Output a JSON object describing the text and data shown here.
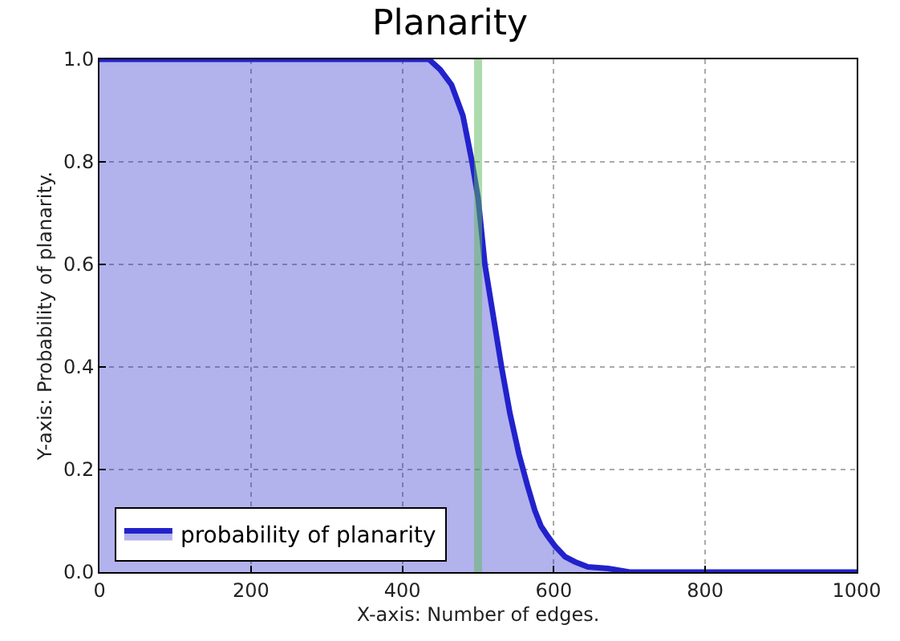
{
  "chart_data": {
    "type": "area",
    "title": "Planarity",
    "xlabel": "X-axis: Number of edges.",
    "ylabel": "Y-axis: Probability of planarity.",
    "xlim": [
      0,
      1000
    ],
    "xticks": [
      0,
      200,
      400,
      600,
      800,
      1000
    ],
    "ylim": [
      0.0,
      1.0
    ],
    "yticks": [
      {
        "value": 0,
        "label": "0.0"
      },
      {
        "value": 0.2,
        "label": "0.2"
      },
      {
        "value": 0.4,
        "label": "0.4"
      },
      {
        "value": 0.6,
        "label": "0.6"
      },
      {
        "value": 0.8,
        "label": "0.8"
      },
      {
        "value": 1,
        "label": "1.0"
      }
    ],
    "grid": true,
    "legend": "bottom left",
    "line_style": "solid",
    "marker": "none",
    "series": [
      {
        "name": "probability of planarity",
        "color": "#2222cc",
        "x": [
          0,
          100,
          200,
          300,
          400,
          435,
          450,
          465,
          480,
          492,
          500,
          509,
          520,
          531,
          542,
          554,
          565,
          575,
          583,
          592,
          602,
          615,
          628,
          645,
          672,
          700,
          800,
          900,
          1000
        ],
        "values": [
          1.0,
          1.0,
          1.0,
          1.0,
          1.0,
          1.0,
          0.98,
          0.95,
          0.89,
          0.8,
          0.73,
          0.6,
          0.5,
          0.4,
          0.31,
          0.23,
          0.17,
          0.12,
          0.09,
          0.07,
          0.05,
          0.03,
          0.02,
          0.01,
          0.007,
          0.0,
          0.0,
          0.0,
          0.0
        ]
      }
    ],
    "ref_lines": [
      {
        "axis": "x",
        "value": 500,
        "label": null,
        "color": "#5cb85c"
      }
    ]
  }
}
